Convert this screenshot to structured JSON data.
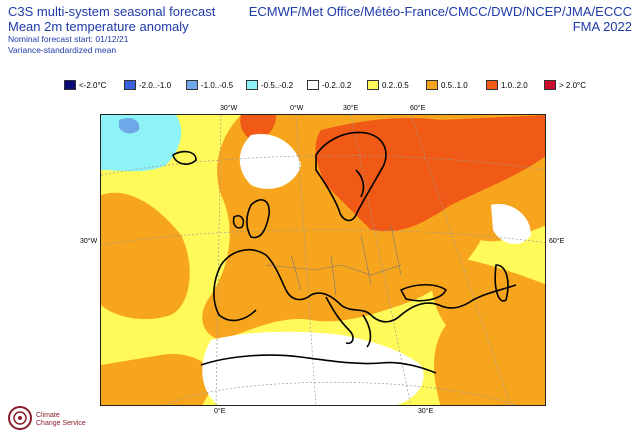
{
  "header": {
    "title_line1": "C3S multi-system seasonal forecast",
    "title_line2": "Mean 2m temperature anomaly",
    "nominal_start": "Nominal forecast start: 01/12/21",
    "variance_note": "Variance-standardized mean",
    "centres": "ECMWF/Met Office/Météo-France/CMCC/DWD/NCEP/JMA/ECCC",
    "season": "FMA 2022"
  },
  "legend": [
    {
      "label": "<-2.0°C",
      "color": "#0a0a78"
    },
    {
      "label": "-2.0..-1.0",
      "color": "#3a60e0"
    },
    {
      "label": "-1.0..-0.5",
      "color": "#6fa8e8"
    },
    {
      "label": "-0.5..-0.2",
      "color": "#8ef3f6"
    },
    {
      "label": "-0.2..0.2",
      "color": "#ffffff"
    },
    {
      "label": "0.2..0.5",
      "color": "#fffa5a"
    },
    {
      "label": "0.5..1.0",
      "color": "#f7a51c"
    },
    {
      "label": "1.0..2.0",
      "color": "#f05a16"
    },
    {
      "label": "> 2.0°C",
      "color": "#c8102e"
    }
  ],
  "map_labels": {
    "top_30w": "30°W",
    "top_0e": "0°W",
    "top_30e": "30°E",
    "top_60e": "60°E",
    "left_30w": "30°W",
    "right_60e": "60°E",
    "bottom_0e": "0°E",
    "bottom_30e": "30°E"
  },
  "logo": {
    "line1": "Climate",
    "line2": "Change Service"
  }
}
